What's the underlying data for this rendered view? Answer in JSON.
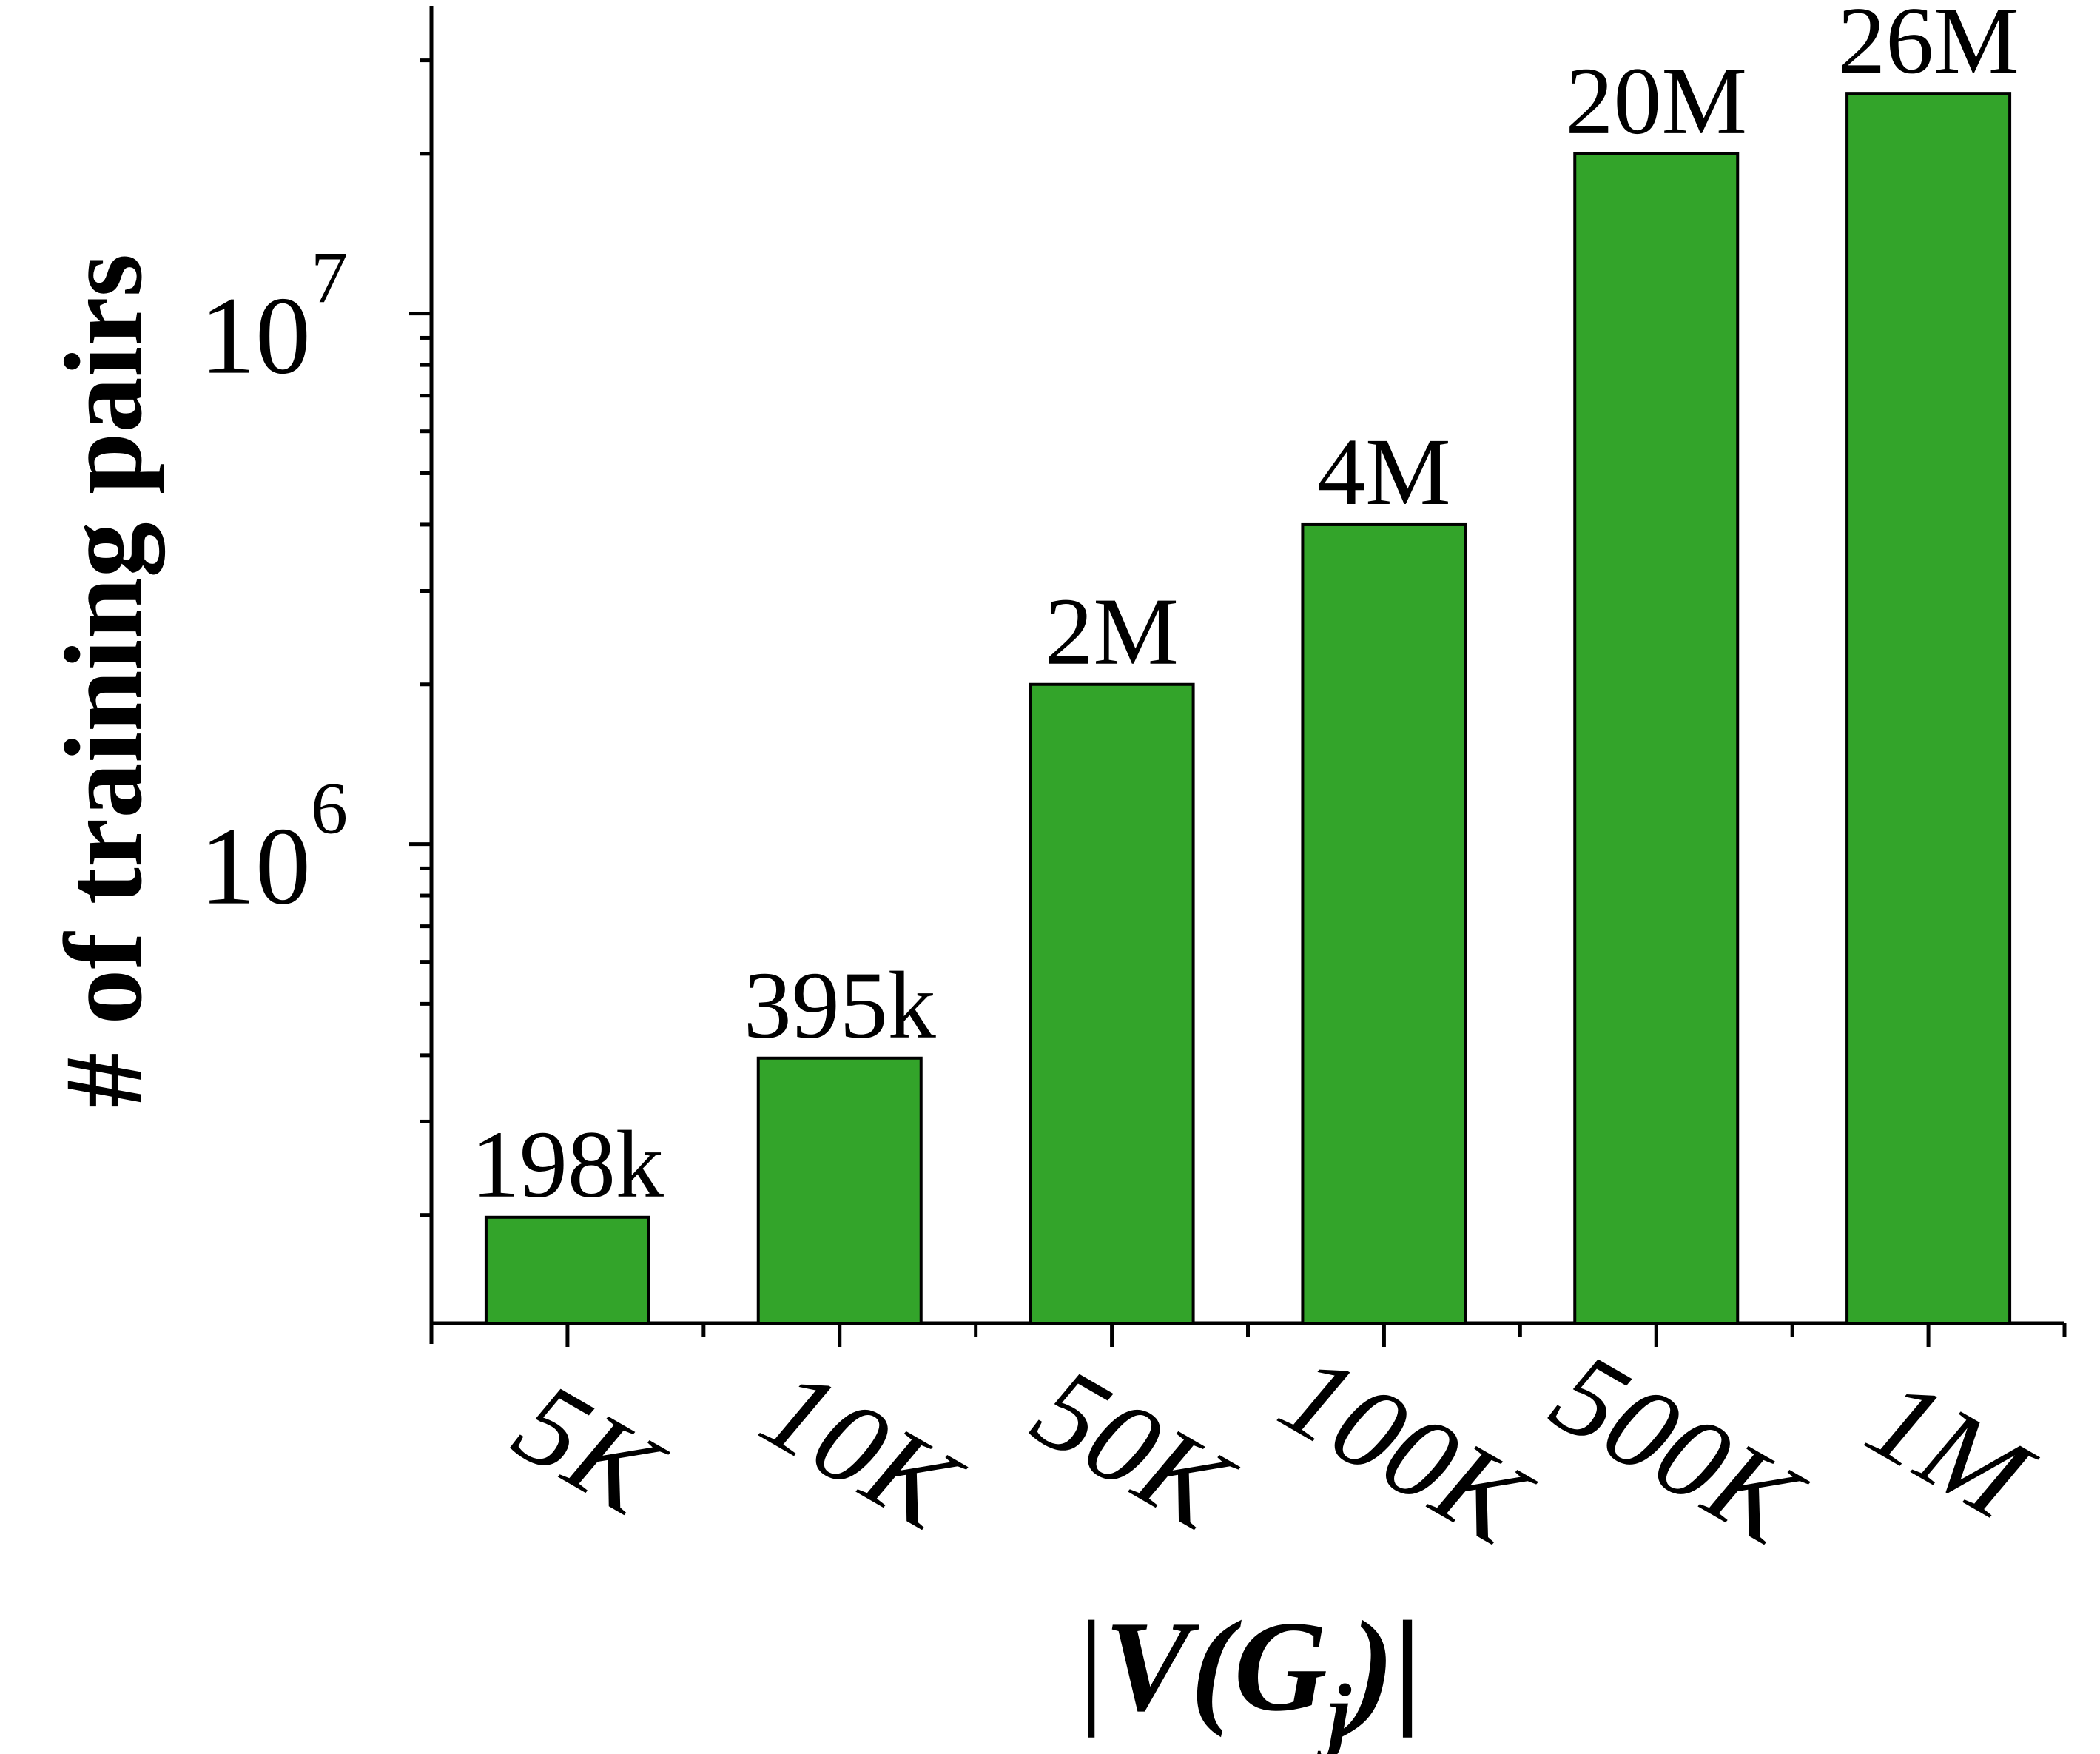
{
  "chart_data": {
    "type": "bar",
    "categories": [
      "5K",
      "10K",
      "50K",
      "100K",
      "500K",
      "1M"
    ],
    "values": [
      198000,
      395000,
      2000000,
      4000000,
      20000000,
      26000000
    ],
    "data_labels": [
      "198k",
      "395k",
      "2M",
      "4M",
      "20M",
      "26M"
    ],
    "xlabel": {
      "prefix": "|",
      "var": "V(G",
      "sub": "j",
      "suffix": ")|"
    },
    "ylabel": "# of training pairs",
    "yscale": "log",
    "ylim": [
      125000,
      38000000
    ],
    "yticks": [
      {
        "value": 1000000,
        "base": "10",
        "exp": "6"
      },
      {
        "value": 10000000,
        "base": "10",
        "exp": "7"
      }
    ],
    "grid": false,
    "legend": "none",
    "bar_color": "#33a42a",
    "bar_edge": "#000000"
  }
}
